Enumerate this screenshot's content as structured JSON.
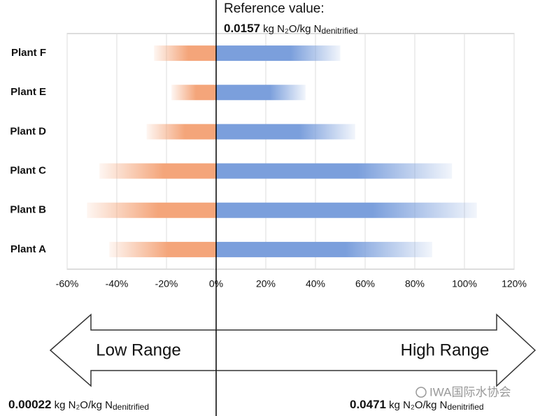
{
  "chart_data": {
    "type": "bar",
    "orientation": "horizontal",
    "categories": [
      "Plant F",
      "Plant E",
      "Plant D",
      "Plant C",
      "Plant B",
      "Plant A"
    ],
    "series": [
      {
        "color": "#f4a57a",
        "values": [
          -25,
          -18,
          -28,
          -47,
          -52,
          -43
        ]
      },
      {
        "color": "#7b9fdc",
        "values": [
          50,
          36,
          56,
          95,
          105,
          87
        ]
      }
    ],
    "xlim": [
      -60,
      120
    ],
    "xticks": [
      {
        "value": -60,
        "label": "-60%"
      },
      {
        "value": -40,
        "label": "-40%"
      },
      {
        "value": -20,
        "label": "-20%"
      },
      {
        "value": 0,
        "label": "0%"
      },
      {
        "value": 20,
        "label": "20%"
      },
      {
        "value": 40,
        "label": "40%"
      },
      {
        "value": 60,
        "label": "60%"
      },
      {
        "value": 80,
        "label": "80%"
      },
      {
        "value": 100,
        "label": "100%"
      },
      {
        "value": 120,
        "label": "120%"
      }
    ],
    "grid": true,
    "annotations": {
      "reference_title": "Reference value:",
      "reference": {
        "value": 0.0157,
        "unit": "kg N₂O/kg N",
        "subscript": "denitrified"
      },
      "low_range": "Low Range",
      "high_range": "High Range",
      "low_value": {
        "value": 0.00022,
        "unit": "kg N₂O/kg N",
        "subscript": "denitrified"
      },
      "high_value": {
        "value": 0.0471,
        "unit": "kg N₂O/kg N",
        "subscript": "denitrified"
      },
      "watermark": "IWA国际水协会"
    }
  }
}
